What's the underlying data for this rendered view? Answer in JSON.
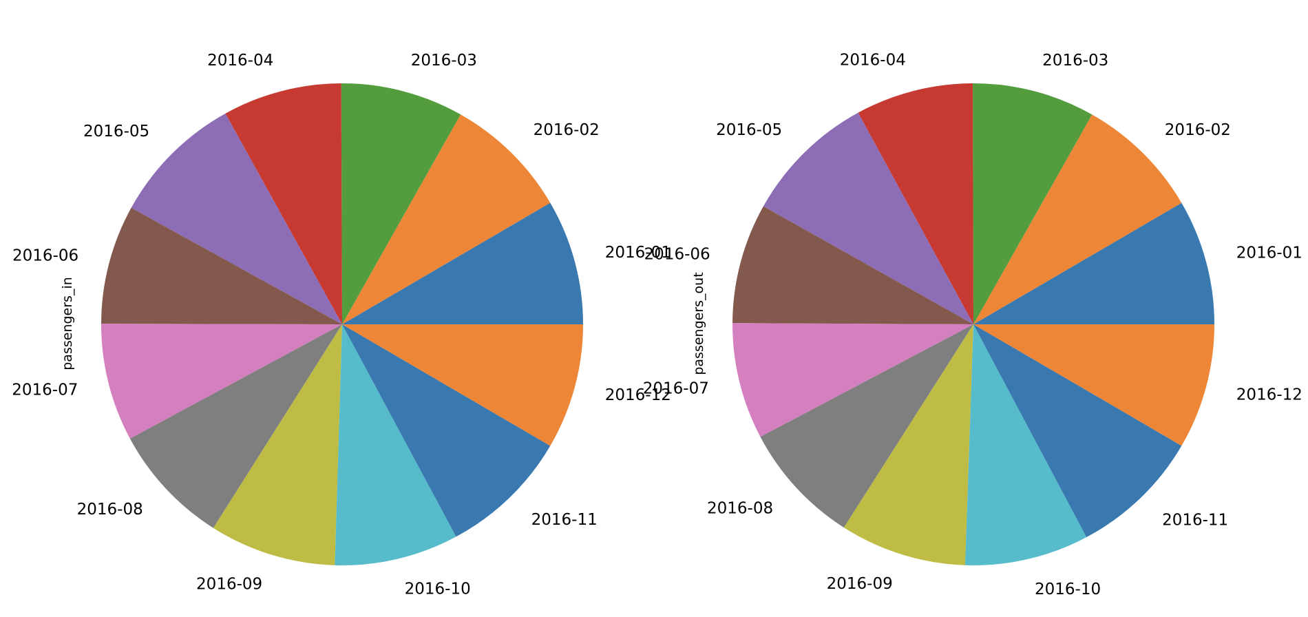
{
  "chart_data": [
    {
      "type": "pie",
      "ylabel": "passengers_in",
      "startangle": 0,
      "direction": "counterclockwise",
      "slices": [
        {
          "label": "2016-01",
          "value": 1.0,
          "color": "#3a78b0"
        },
        {
          "label": "2016-02",
          "value": 1.0,
          "color": "#ee8637"
        },
        {
          "label": "2016-03",
          "value": 0.98,
          "color": "#539d3f"
        },
        {
          "label": "2016-04",
          "value": 0.95,
          "color": "#c63a32"
        },
        {
          "label": "2016-05",
          "value": 1.06,
          "color": "#8e6db7"
        },
        {
          "label": "2016-06",
          "value": 0.95,
          "color": "#83594d"
        },
        {
          "label": "2016-07",
          "value": 0.94,
          "color": "#d47fbe"
        },
        {
          "label": "2016-08",
          "value": 0.97,
          "color": "#7f7f7f"
        },
        {
          "label": "2016-09",
          "value": 1.01,
          "color": "#bfbc45"
        },
        {
          "label": "2016-10",
          "value": 0.99,
          "color": "#56bccb"
        },
        {
          "label": "2016-11",
          "value": 1.04,
          "color": "#3a78b0"
        },
        {
          "label": "2016-12",
          "value": 1.0,
          "color": "#ee8637"
        }
      ]
    },
    {
      "type": "pie",
      "ylabel": "passengers_out",
      "startangle": 0,
      "direction": "counterclockwise",
      "slices": [
        {
          "label": "2016-01",
          "value": 1.0,
          "color": "#3a78b0"
        },
        {
          "label": "2016-02",
          "value": 1.0,
          "color": "#ee8637"
        },
        {
          "label": "2016-03",
          "value": 0.98,
          "color": "#539d3f"
        },
        {
          "label": "2016-04",
          "value": 0.94,
          "color": "#c63a32"
        },
        {
          "label": "2016-05",
          "value": 1.06,
          "color": "#8e6db7"
        },
        {
          "label": "2016-06",
          "value": 0.96,
          "color": "#83594d"
        },
        {
          "label": "2016-07",
          "value": 0.93,
          "color": "#d47fbe"
        },
        {
          "label": "2016-08",
          "value": 0.98,
          "color": "#7f7f7f"
        },
        {
          "label": "2016-09",
          "value": 1.01,
          "color": "#bfbc45"
        },
        {
          "label": "2016-10",
          "value": 0.99,
          "color": "#56bccb"
        },
        {
          "label": "2016-11",
          "value": 1.05,
          "color": "#3a78b0"
        },
        {
          "label": "2016-12",
          "value": 1.0,
          "color": "#ee8637"
        }
      ]
    }
  ]
}
